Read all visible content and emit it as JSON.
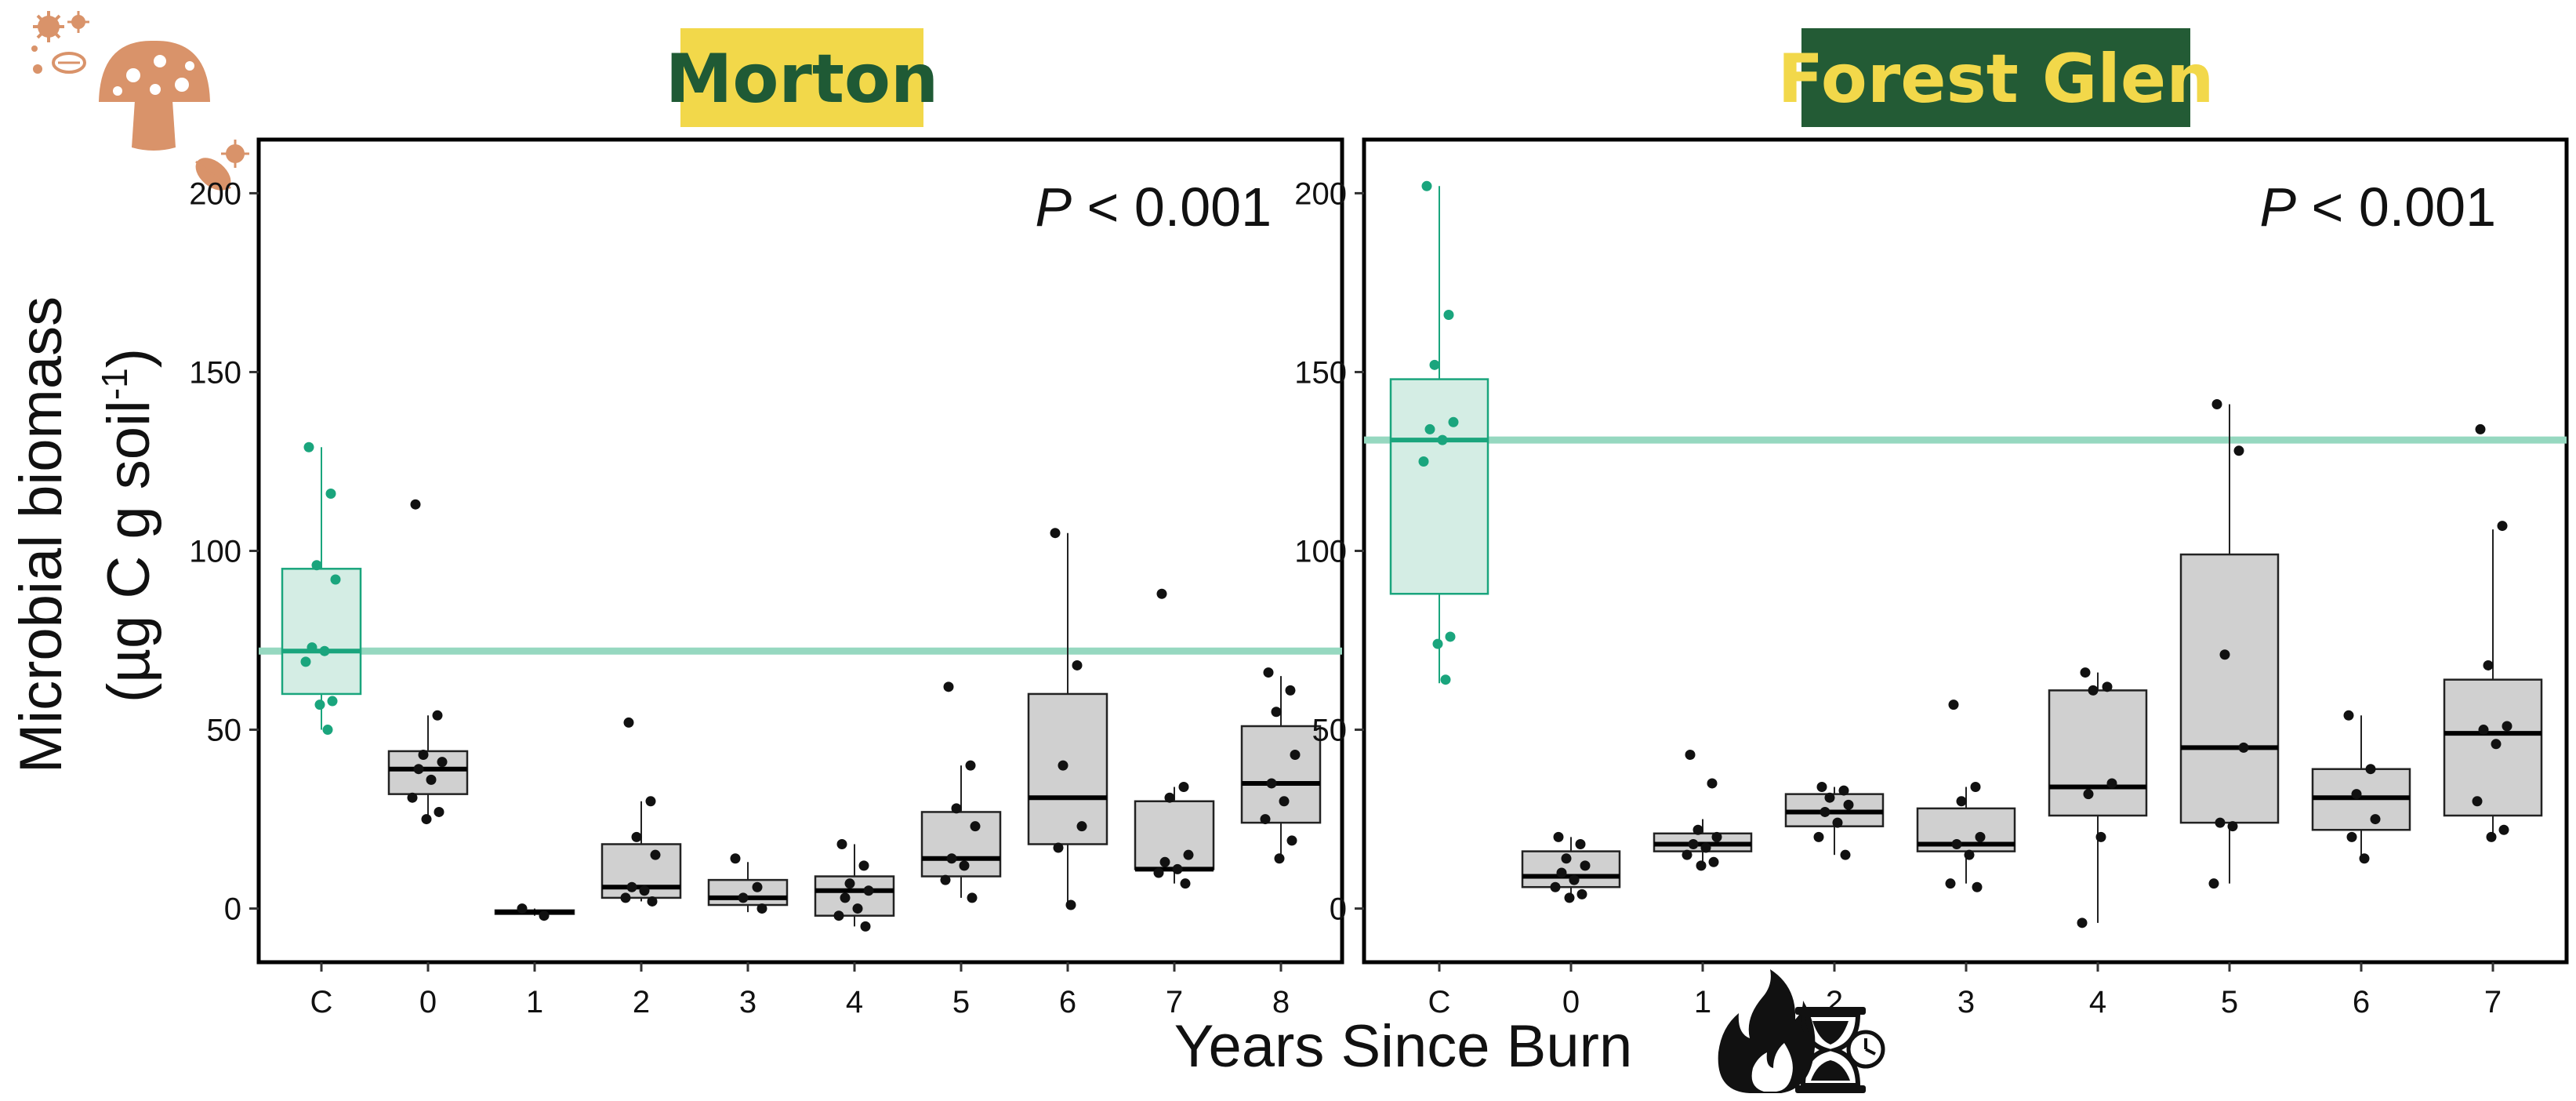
{
  "colors": {
    "control": "#1aa57d",
    "control_fill": "#d4ede4",
    "control_line": "#96d8c0",
    "burn_fill": "#d0d0d0",
    "points": "#111111",
    "icon_orange": "#d9936a",
    "morton_title_bg": "#f2d84a",
    "morton_title_fg": "#1f5a35",
    "forest_title_bg": "#235b35",
    "forest_title_fg": "#f2d84a"
  },
  "icons": [
    "microbe-cluster-icon",
    "mushroom-icon",
    "bacteria-icon",
    "flame-icon",
    "hourglass-clock-icon"
  ],
  "chart_data": [
    {
      "type": "box",
      "title": "Morton",
      "annotation": {
        "italic": "P",
        "rest": " < 0.001"
      },
      "categories": [
        "C",
        "0",
        "1",
        "2",
        "3",
        "4",
        "5",
        "6",
        "7",
        "8"
      ],
      "ylim": [
        -15,
        215
      ],
      "yticks": [
        "0",
        "50",
        "100",
        "150",
        "200"
      ],
      "reference_line": 72,
      "boxes": [
        {
          "q1": 60,
          "median": 72,
          "q3": 95,
          "lo": 50,
          "hi": 129,
          "control": true
        },
        {
          "q1": 32,
          "median": 39,
          "q3": 44,
          "lo": 25,
          "hi": 54
        },
        {
          "q1": -1.5,
          "median": -1,
          "q3": -0.5,
          "lo": -2,
          "hi": 0
        },
        {
          "q1": 3,
          "median": 6,
          "q3": 18,
          "lo": 2,
          "hi": 30
        },
        {
          "q1": 1,
          "median": 3,
          "q3": 8,
          "lo": -1,
          "hi": 13
        },
        {
          "q1": -2,
          "median": 5,
          "q3": 9,
          "lo": -5,
          "hi": 18
        },
        {
          "q1": 9,
          "median": 14,
          "q3": 27,
          "lo": 3,
          "hi": 40
        },
        {
          "q1": 18,
          "median": 31,
          "q3": 60,
          "lo": 0,
          "hi": 105
        },
        {
          "q1": 11,
          "median": 11,
          "q3": 30,
          "lo": 7,
          "hi": 34
        },
        {
          "q1": 24,
          "median": 35,
          "q3": 51,
          "lo": 14,
          "hi": 65
        }
      ],
      "points": [
        [
          129,
          116,
          96,
          92,
          73,
          72,
          69,
          58,
          57,
          50
        ],
        [
          113,
          54,
          43,
          41,
          39,
          36,
          31,
          27,
          25
        ],
        [
          0,
          -2
        ],
        [
          52,
          30,
          20,
          15,
          6,
          5,
          3,
          2
        ],
        [
          14,
          6,
          3,
          0
        ],
        [
          18,
          12,
          7,
          5,
          3,
          0,
          -2,
          -5
        ],
        [
          62,
          40,
          28,
          23,
          14,
          12,
          8,
          3
        ],
        [
          105,
          68,
          40,
          23,
          17,
          1
        ],
        [
          88,
          34,
          31,
          15,
          13,
          11,
          10,
          7
        ],
        [
          66,
          61,
          55,
          43,
          35,
          30,
          25,
          19,
          14
        ]
      ]
    },
    {
      "type": "box",
      "title": "Forest Glen",
      "annotation": {
        "italic": "P",
        "rest": " < 0.001"
      },
      "categories": [
        "C",
        "0",
        "1",
        "2",
        "3",
        "4",
        "5",
        "6",
        "7"
      ],
      "ylim": [
        -15,
        215
      ],
      "yticks": [
        "0",
        "50",
        "100",
        "150",
        "200"
      ],
      "reference_line": 131,
      "boxes": [
        {
          "q1": 88,
          "median": 131,
          "q3": 148,
          "lo": 63,
          "hi": 202,
          "control": true
        },
        {
          "q1": 6,
          "median": 9,
          "q3": 16,
          "lo": 3,
          "hi": 20
        },
        {
          "q1": 16,
          "median": 18,
          "q3": 21,
          "lo": 12,
          "hi": 25
        },
        {
          "q1": 23,
          "median": 27,
          "q3": 32,
          "lo": 15,
          "hi": 34
        },
        {
          "q1": 16,
          "median": 18,
          "q3": 28,
          "lo": 7,
          "hi": 34
        },
        {
          "q1": 26,
          "median": 34,
          "q3": 61,
          "lo": -4,
          "hi": 66
        },
        {
          "q1": 24,
          "median": 45,
          "q3": 99,
          "lo": 7,
          "hi": 141
        },
        {
          "q1": 22,
          "median": 31,
          "q3": 39,
          "lo": 14,
          "hi": 54
        },
        {
          "q1": 26,
          "median": 49,
          "q3": 64,
          "lo": 20,
          "hi": 106
        }
      ],
      "points": [
        [
          202,
          166,
          152,
          136,
          134,
          131,
          125,
          76,
          74,
          64
        ],
        [
          20,
          18,
          14,
          12,
          10,
          8,
          6,
          4,
          3
        ],
        [
          43,
          35,
          22,
          20,
          18,
          17,
          15,
          13,
          12
        ],
        [
          34,
          33,
          31,
          29,
          27,
          24,
          20,
          15
        ],
        [
          57,
          34,
          30,
          20,
          18,
          15,
          7,
          6
        ],
        [
          66,
          62,
          61,
          35,
          32,
          20,
          -4
        ],
        [
          141,
          128,
          71,
          45,
          24,
          23,
          7
        ],
        [
          54,
          39,
          32,
          25,
          20,
          14
        ],
        [
          134,
          107,
          68,
          51,
          50,
          46,
          30,
          22,
          20
        ]
      ]
    }
  ],
  "y_axis_title": {
    "line1": "Microbial biomass",
    "line2_pre": "(µg C g soil",
    "line2_sup": "-1",
    "line2_post": ")"
  },
  "x_axis_title": "Years Since Burn"
}
